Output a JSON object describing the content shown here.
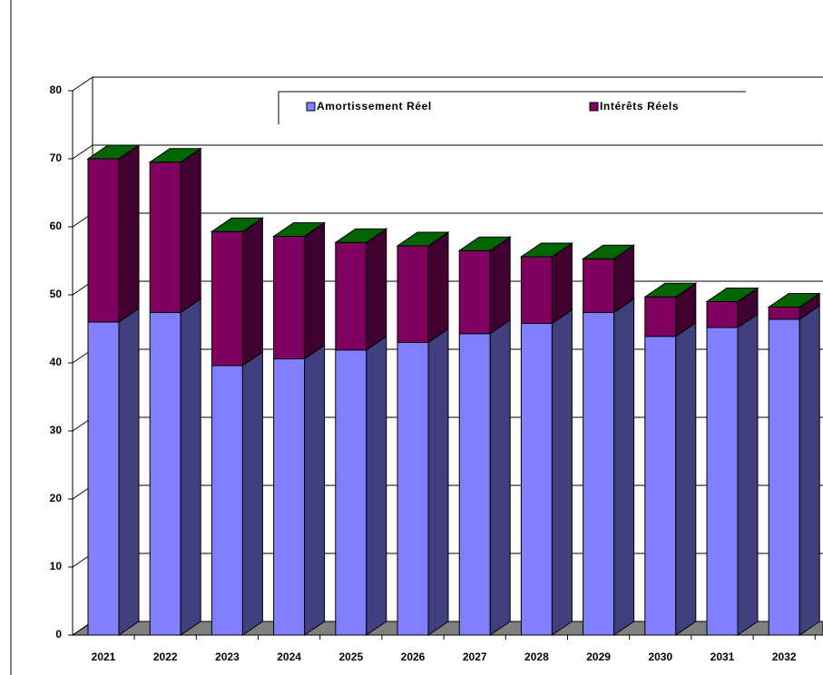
{
  "chart_data": {
    "type": "bar3d_stacked",
    "categories": [
      "2021",
      "2022",
      "2023",
      "2024",
      "2025",
      "2026",
      "2027",
      "2028",
      "2029",
      "2030",
      "2031",
      "2032"
    ],
    "series": [
      {
        "name": "Amortissement Réel",
        "color": "#8080ff",
        "values": [
          46.0,
          47.4,
          39.6,
          40.6,
          41.9,
          43.0,
          44.3,
          45.8,
          47.4,
          43.9,
          45.2,
          46.4
        ]
      },
      {
        "name": "Intérêts Réels",
        "color": "#800060",
        "values": [
          24.0,
          22.1,
          19.7,
          18.0,
          15.8,
          14.2,
          12.2,
          9.8,
          7.9,
          5.8,
          3.8,
          1.8
        ]
      }
    ],
    "top_color": "#006400",
    "ylim": [
      0,
      80
    ],
    "yticks": [
      0,
      10,
      20,
      30,
      40,
      50,
      60,
      70,
      80
    ],
    "grid": true
  }
}
